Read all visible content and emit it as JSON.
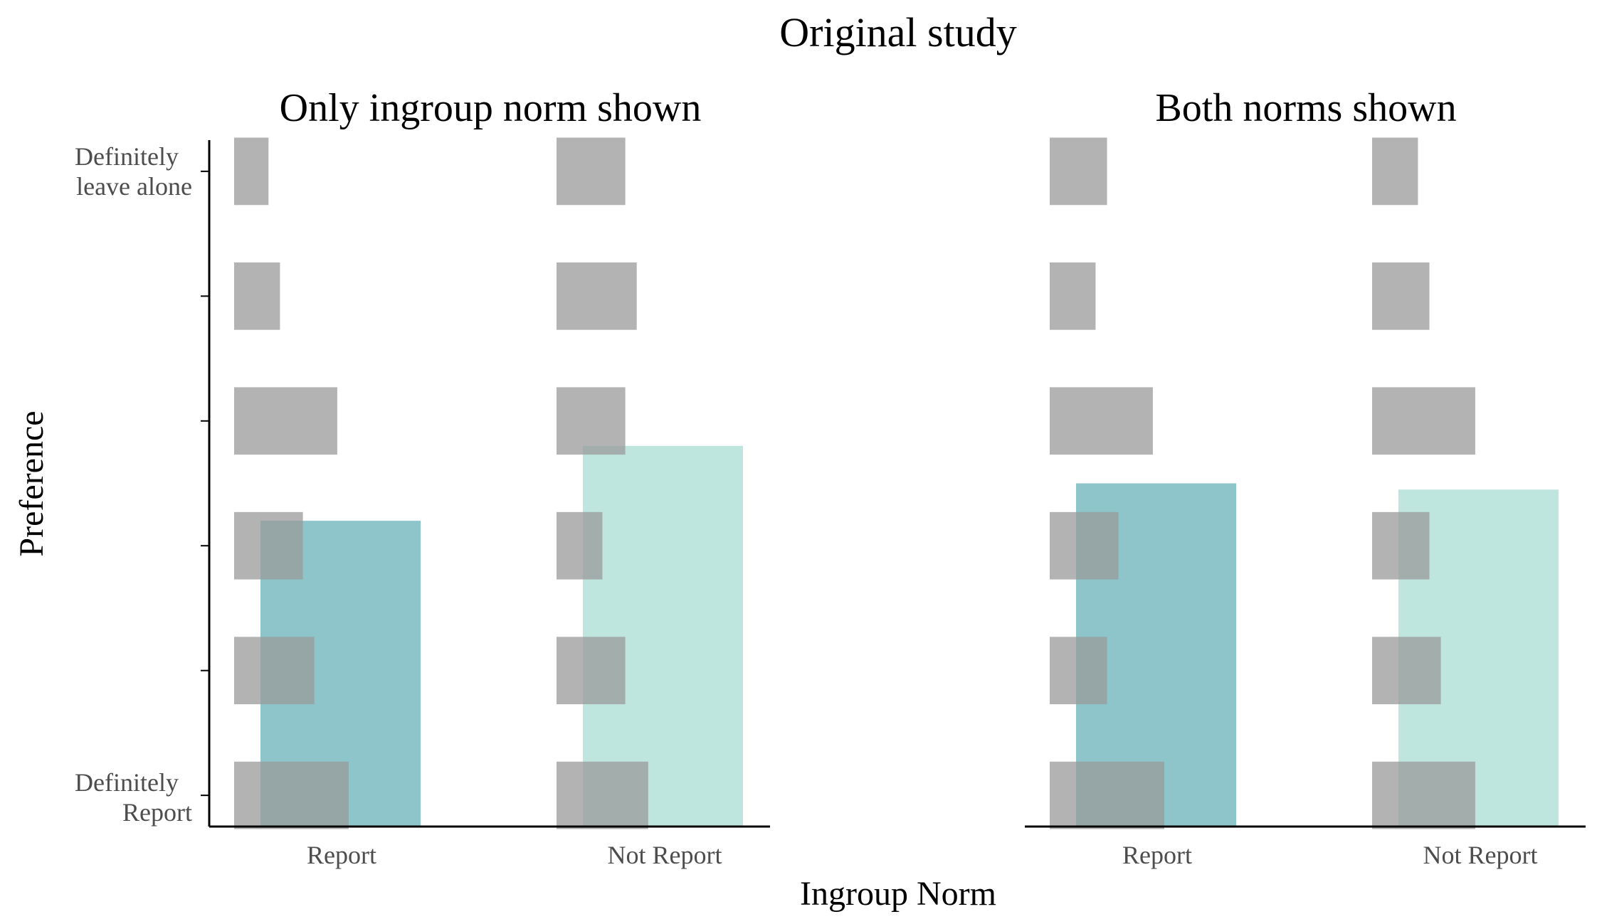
{
  "colors": {
    "report_bar": "#8DC5CA",
    "not_report_bar": "#BEE5DE",
    "distribution_block": "#999999",
    "axis": "#000000"
  },
  "chart_data": {
    "type": "bar",
    "title": "Original study",
    "xlabel": "Ingroup Norm",
    "ylabel": "Preference",
    "categories": [
      "Report",
      "Not Report"
    ],
    "y_levels": 6,
    "y_tick_labels": {
      "top": [
        "Definitely",
        "leave alone"
      ],
      "bottom": [
        "Definitely",
        "Report"
      ]
    },
    "ylim": [
      0.75,
      6.25
    ],
    "grid": false,
    "panels": [
      {
        "title": "Only ingroup norm shown",
        "mean_values": [
          3.2,
          3.8
        ],
        "distribution": [
          {
            "category": "Report",
            "level_counts": [
              10,
              7,
              6,
              9,
              4,
              3
            ]
          },
          {
            "category": "Not Report",
            "level_counts": [
              8,
              6,
              4,
              6,
              7,
              6
            ]
          }
        ]
      },
      {
        "title": "Both norms shown",
        "mean_values": [
          3.5,
          3.45
        ],
        "distribution": [
          {
            "category": "Report",
            "level_counts": [
              10,
              5,
              6,
              9,
              4,
              5
            ]
          },
          {
            "category": "Not Report",
            "level_counts": [
              9,
              6,
              5,
              9,
              5,
              4
            ]
          }
        ]
      }
    ]
  }
}
